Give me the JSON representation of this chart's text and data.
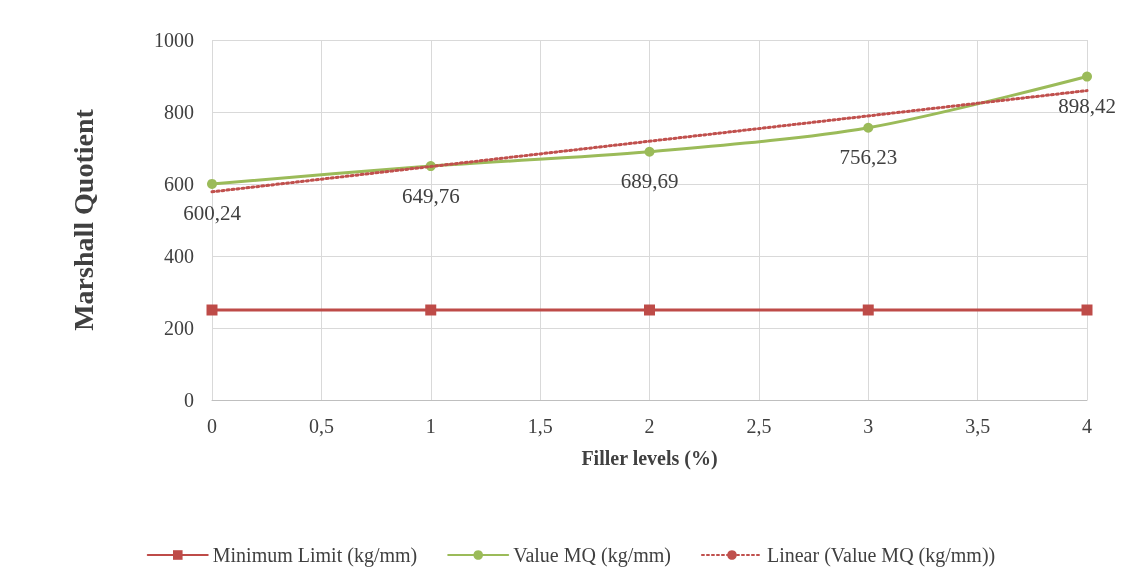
{
  "chart_data": {
    "type": "line",
    "xlabel": "Filler levels (%)",
    "ylabel": "Marshall Quotient",
    "x": [
      0,
      1,
      2,
      3,
      4
    ],
    "series": [
      {
        "name": "Minimum Limit (kg/mm)",
        "color": "#be4b48",
        "marker": "square",
        "values": [
          250,
          250,
          250,
          250,
          250
        ]
      },
      {
        "name": "Value MQ (kg/mm)",
        "color": "#9bbb59",
        "marker": "circle",
        "values": [
          600.24,
          649.76,
          689.69,
          756.23,
          898.42
        ],
        "value_labels": [
          "600,24",
          "649,76",
          "689,69",
          "756,23",
          "898,42"
        ]
      },
      {
        "name": "Linear (Value MQ (kg/mm))",
        "color": "#c0504d",
        "marker": "none",
        "line_style": "dotted",
        "x": [
          0,
          4
        ],
        "values": [
          578.3,
          859.4
        ]
      }
    ],
    "xlim": [
      0,
      4
    ],
    "xticks": [
      0,
      {
        "value": 0.5,
        "label": "0,5"
      },
      1,
      {
        "value": 1.5,
        "label": "1,5"
      },
      2,
      {
        "value": 2.5,
        "label": "2,5"
      },
      3,
      {
        "value": 3.5,
        "label": "3,5"
      },
      4
    ],
    "ylim": [
      0,
      1000
    ],
    "yticks": [
      0,
      200,
      400,
      600,
      800,
      1000
    ],
    "grid": true,
    "legend": "bottom"
  }
}
